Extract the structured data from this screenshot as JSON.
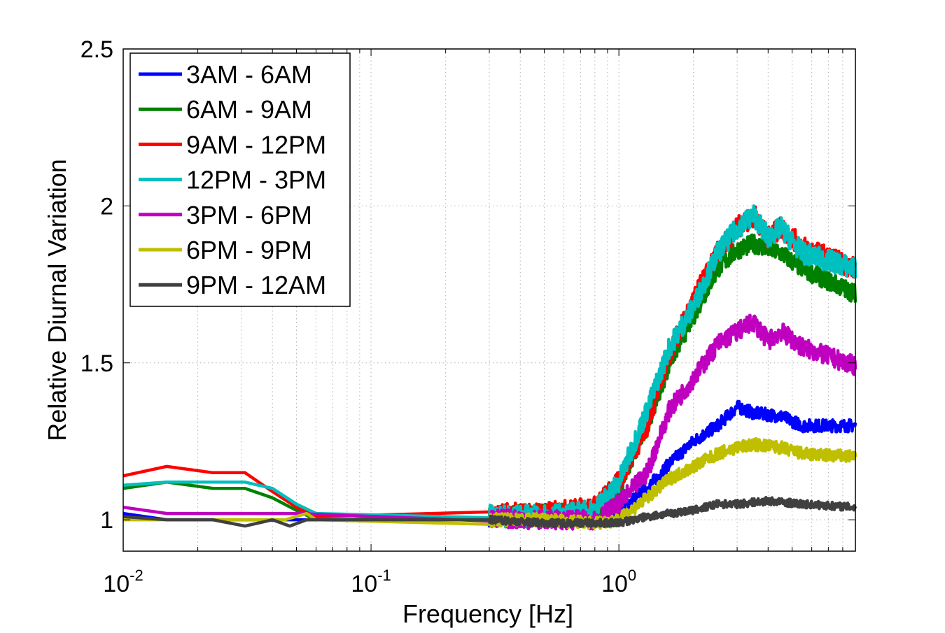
{
  "chart_data": {
    "type": "line",
    "title": "",
    "xlabel": "Frequency [Hz]",
    "ylabel": "Relative Diurnal Variation",
    "xscale": "log",
    "xlim": [
      0.01,
      9
    ],
    "ylim": [
      0.9,
      2.5
    ],
    "grid": true,
    "legend_position": "top-left",
    "x_ticks": [
      {
        "value": 0.01,
        "base": "10",
        "exp": "-2"
      },
      {
        "value": 0.1,
        "base": "10",
        "exp": "-1"
      },
      {
        "value": 1,
        "base": "10",
        "exp": "0"
      }
    ],
    "y_ticks": [
      {
        "value": 1,
        "label": "1"
      },
      {
        "value": 1.5,
        "label": "1.5"
      },
      {
        "value": 2,
        "label": "2"
      },
      {
        "value": 2.5,
        "label": "2.5"
      }
    ],
    "series": [
      {
        "name": "3AM - 6AM",
        "color": "#0000ff",
        "noise": 0.02,
        "points": [
          [
            0.01,
            1.02
          ],
          [
            0.015,
            1.0
          ],
          [
            0.03,
            1.0
          ],
          [
            0.05,
            1.0
          ],
          [
            0.3,
            1.0
          ],
          [
            0.5,
            1.0
          ],
          [
            0.8,
            1.0
          ],
          [
            1.0,
            1.03
          ],
          [
            1.3,
            1.1
          ],
          [
            1.6,
            1.18
          ],
          [
            2.0,
            1.25
          ],
          [
            2.5,
            1.3
          ],
          [
            3.0,
            1.36
          ],
          [
            3.5,
            1.34
          ],
          [
            4.5,
            1.33
          ],
          [
            5.5,
            1.3
          ],
          [
            9.0,
            1.3
          ]
        ]
      },
      {
        "name": "6AM - 9AM",
        "color": "#008000",
        "noise": 0.03,
        "points": [
          [
            0.01,
            1.1
          ],
          [
            0.015,
            1.12
          ],
          [
            0.023,
            1.1
          ],
          [
            0.031,
            1.1
          ],
          [
            0.04,
            1.07
          ],
          [
            0.05,
            1.03
          ],
          [
            0.06,
            1.0
          ],
          [
            0.5,
            1.02
          ],
          [
            0.8,
            1.03
          ],
          [
            1.0,
            1.1
          ],
          [
            1.3,
            1.3
          ],
          [
            1.6,
            1.5
          ],
          [
            2.0,
            1.65
          ],
          [
            2.5,
            1.8
          ],
          [
            3.0,
            1.86
          ],
          [
            3.5,
            1.88
          ],
          [
            4.5,
            1.85
          ],
          [
            5.5,
            1.8
          ],
          [
            9.0,
            1.72
          ]
        ]
      },
      {
        "name": "9AM - 12PM",
        "color": "#ff0000",
        "noise": 0.035,
        "points": [
          [
            0.01,
            1.14
          ],
          [
            0.015,
            1.17
          ],
          [
            0.023,
            1.15
          ],
          [
            0.031,
            1.15
          ],
          [
            0.04,
            1.09
          ],
          [
            0.05,
            1.04
          ],
          [
            0.06,
            1.01
          ],
          [
            0.5,
            1.02
          ],
          [
            0.8,
            1.04
          ],
          [
            1.0,
            1.12
          ],
          [
            1.3,
            1.3
          ],
          [
            1.6,
            1.53
          ],
          [
            2.0,
            1.7
          ],
          [
            2.5,
            1.85
          ],
          [
            3.0,
            1.93
          ],
          [
            3.5,
            1.97
          ],
          [
            4.0,
            1.9
          ],
          [
            4.5,
            1.93
          ],
          [
            5.5,
            1.87
          ],
          [
            9.0,
            1.8
          ]
        ]
      },
      {
        "name": "12PM - 3PM",
        "color": "#00bfbf",
        "noise": 0.035,
        "points": [
          [
            0.01,
            1.11
          ],
          [
            0.015,
            1.12
          ],
          [
            0.023,
            1.12
          ],
          [
            0.031,
            1.12
          ],
          [
            0.04,
            1.1
          ],
          [
            0.05,
            1.05
          ],
          [
            0.06,
            1.02
          ],
          [
            0.5,
            1.01
          ],
          [
            0.8,
            1.03
          ],
          [
            1.0,
            1.12
          ],
          [
            1.3,
            1.35
          ],
          [
            1.6,
            1.55
          ],
          [
            2.0,
            1.68
          ],
          [
            2.5,
            1.85
          ],
          [
            3.0,
            1.93
          ],
          [
            3.5,
            1.97
          ],
          [
            4.0,
            1.9
          ],
          [
            4.5,
            1.93
          ],
          [
            5.5,
            1.85
          ],
          [
            9.0,
            1.8
          ]
        ]
      },
      {
        "name": "3PM - 6PM",
        "color": "#bf00bf",
        "noise": 0.03,
        "points": [
          [
            0.01,
            1.04
          ],
          [
            0.015,
            1.02
          ],
          [
            0.05,
            1.02
          ],
          [
            0.5,
            1.0
          ],
          [
            0.8,
            1.0
          ],
          [
            1.0,
            1.05
          ],
          [
            1.3,
            1.15
          ],
          [
            1.6,
            1.35
          ],
          [
            2.0,
            1.45
          ],
          [
            2.5,
            1.56
          ],
          [
            3.0,
            1.6
          ],
          [
            3.5,
            1.63
          ],
          [
            4.0,
            1.57
          ],
          [
            4.5,
            1.6
          ],
          [
            5.5,
            1.55
          ],
          [
            9.0,
            1.49
          ]
        ]
      },
      {
        "name": "6PM - 9PM",
        "color": "#bfbf00",
        "noise": 0.02,
        "points": [
          [
            0.01,
            1.0
          ],
          [
            0.015,
            1.0
          ],
          [
            0.045,
            1.0
          ],
          [
            0.055,
            1.02
          ],
          [
            0.06,
            1.0
          ],
          [
            0.5,
            1.0
          ],
          [
            0.8,
            0.99
          ],
          [
            1.0,
            1.0
          ],
          [
            1.3,
            1.07
          ],
          [
            1.6,
            1.13
          ],
          [
            2.0,
            1.17
          ],
          [
            2.5,
            1.21
          ],
          [
            3.0,
            1.23
          ],
          [
            3.5,
            1.24
          ],
          [
            4.5,
            1.23
          ],
          [
            5.5,
            1.21
          ],
          [
            9.0,
            1.2
          ]
        ]
      },
      {
        "name": "9PM - 12AM",
        "color": "#404040",
        "noise": 0.012,
        "points": [
          [
            0.01,
            1.01
          ],
          [
            0.015,
            1.0
          ],
          [
            0.023,
            1.0
          ],
          [
            0.031,
            0.98
          ],
          [
            0.04,
            1.0
          ],
          [
            0.047,
            0.98
          ],
          [
            0.055,
            1.0
          ],
          [
            0.3,
            1.0
          ],
          [
            0.5,
            0.99
          ],
          [
            0.8,
            0.99
          ],
          [
            1.0,
            0.99
          ],
          [
            1.3,
            1.01
          ],
          [
            1.6,
            1.02
          ],
          [
            2.0,
            1.03
          ],
          [
            2.5,
            1.05
          ],
          [
            3.0,
            1.05
          ],
          [
            4.0,
            1.06
          ],
          [
            5.5,
            1.05
          ],
          [
            9.0,
            1.04
          ]
        ]
      }
    ]
  }
}
